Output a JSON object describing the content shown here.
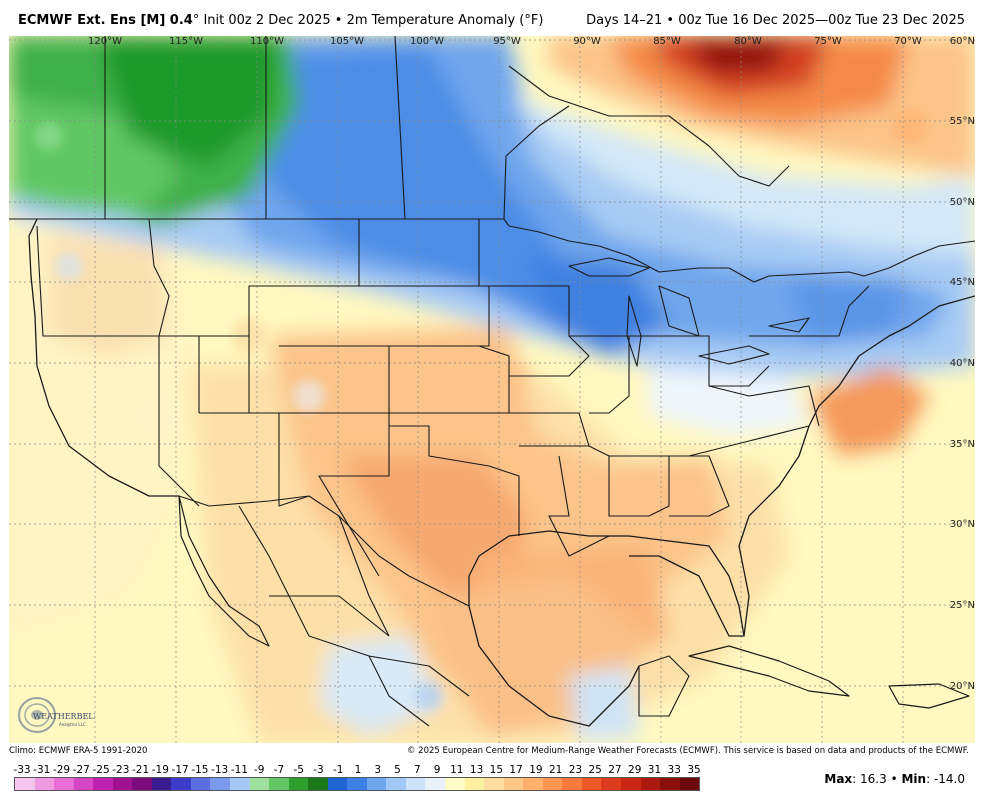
{
  "header": {
    "model_title": "ECMWF Ext. Ens [M] 0.4",
    "degree": "°",
    "init": " Init 00z 2 Dec 2025 • 2m Temperature Anomaly (°F)",
    "valid": "Days 14–21 • 00z Tue 16 Dec 2025—00z Tue 23 Dec 2025"
  },
  "map": {
    "lon_labels": [
      "120°W",
      "115°W",
      "110°W",
      "105°W",
      "100°W",
      "95°W",
      "90°W",
      "85°W",
      "80°W",
      "75°W",
      "70°W"
    ],
    "lat_labels": [
      "60°N",
      "55°N",
      "50°N",
      "45°N",
      "40°N",
      "35°N",
      "30°N",
      "25°N",
      "20°N"
    ]
  },
  "logo": {
    "text": "WEATHERBELL",
    "subtext": "Analytics LLC"
  },
  "footer": {
    "climo": "Climo: ECMWF ERA-5 1991-2020",
    "copyright": "© 2025 European Centre for Medium-Range Weather Forecasts (ECMWF). This service is based on data and products of the ECMWF."
  },
  "legend": {
    "ticks": [
      "-33",
      "-31",
      "-29",
      "-27",
      "-25",
      "-23",
      "-21",
      "-19",
      "-17",
      "-15",
      "-13",
      "-11",
      "-9",
      "-7",
      "-5",
      "-3",
      "-1",
      "1",
      "3",
      "5",
      "7",
      "9",
      "11",
      "13",
      "15",
      "17",
      "19",
      "21",
      "23",
      "25",
      "27",
      "29",
      "31",
      "33",
      "35"
    ],
    "colors": [
      "#f7c6f0",
      "#f09ae4",
      "#e66ed6",
      "#d645c4",
      "#c020b0",
      "#a0108f",
      "#7c0a7a",
      "#3a1a8f",
      "#3c3cc8",
      "#5a6ee0",
      "#7a9af0",
      "#a6c8f8",
      "#9ee0a0",
      "#64c864",
      "#2ea02e",
      "#1a7a1a",
      "#1e64d2",
      "#3c82e6",
      "#6ea6f0",
      "#a0c8f8",
      "#cce4fa",
      "#ebf3fa",
      "#fffbc8",
      "#fff0a0",
      "#ffdca0",
      "#ffc886",
      "#ffb06a",
      "#ff9650",
      "#f77a3a",
      "#ec5a28",
      "#dc3c1c",
      "#c82814",
      "#aa1a0e",
      "#8c0e0a",
      "#6e0a08"
    ],
    "max_label": "Max",
    "max_value": "16.3",
    "sep": " • ",
    "min_label": "Min",
    "min_value": "-14.0"
  }
}
